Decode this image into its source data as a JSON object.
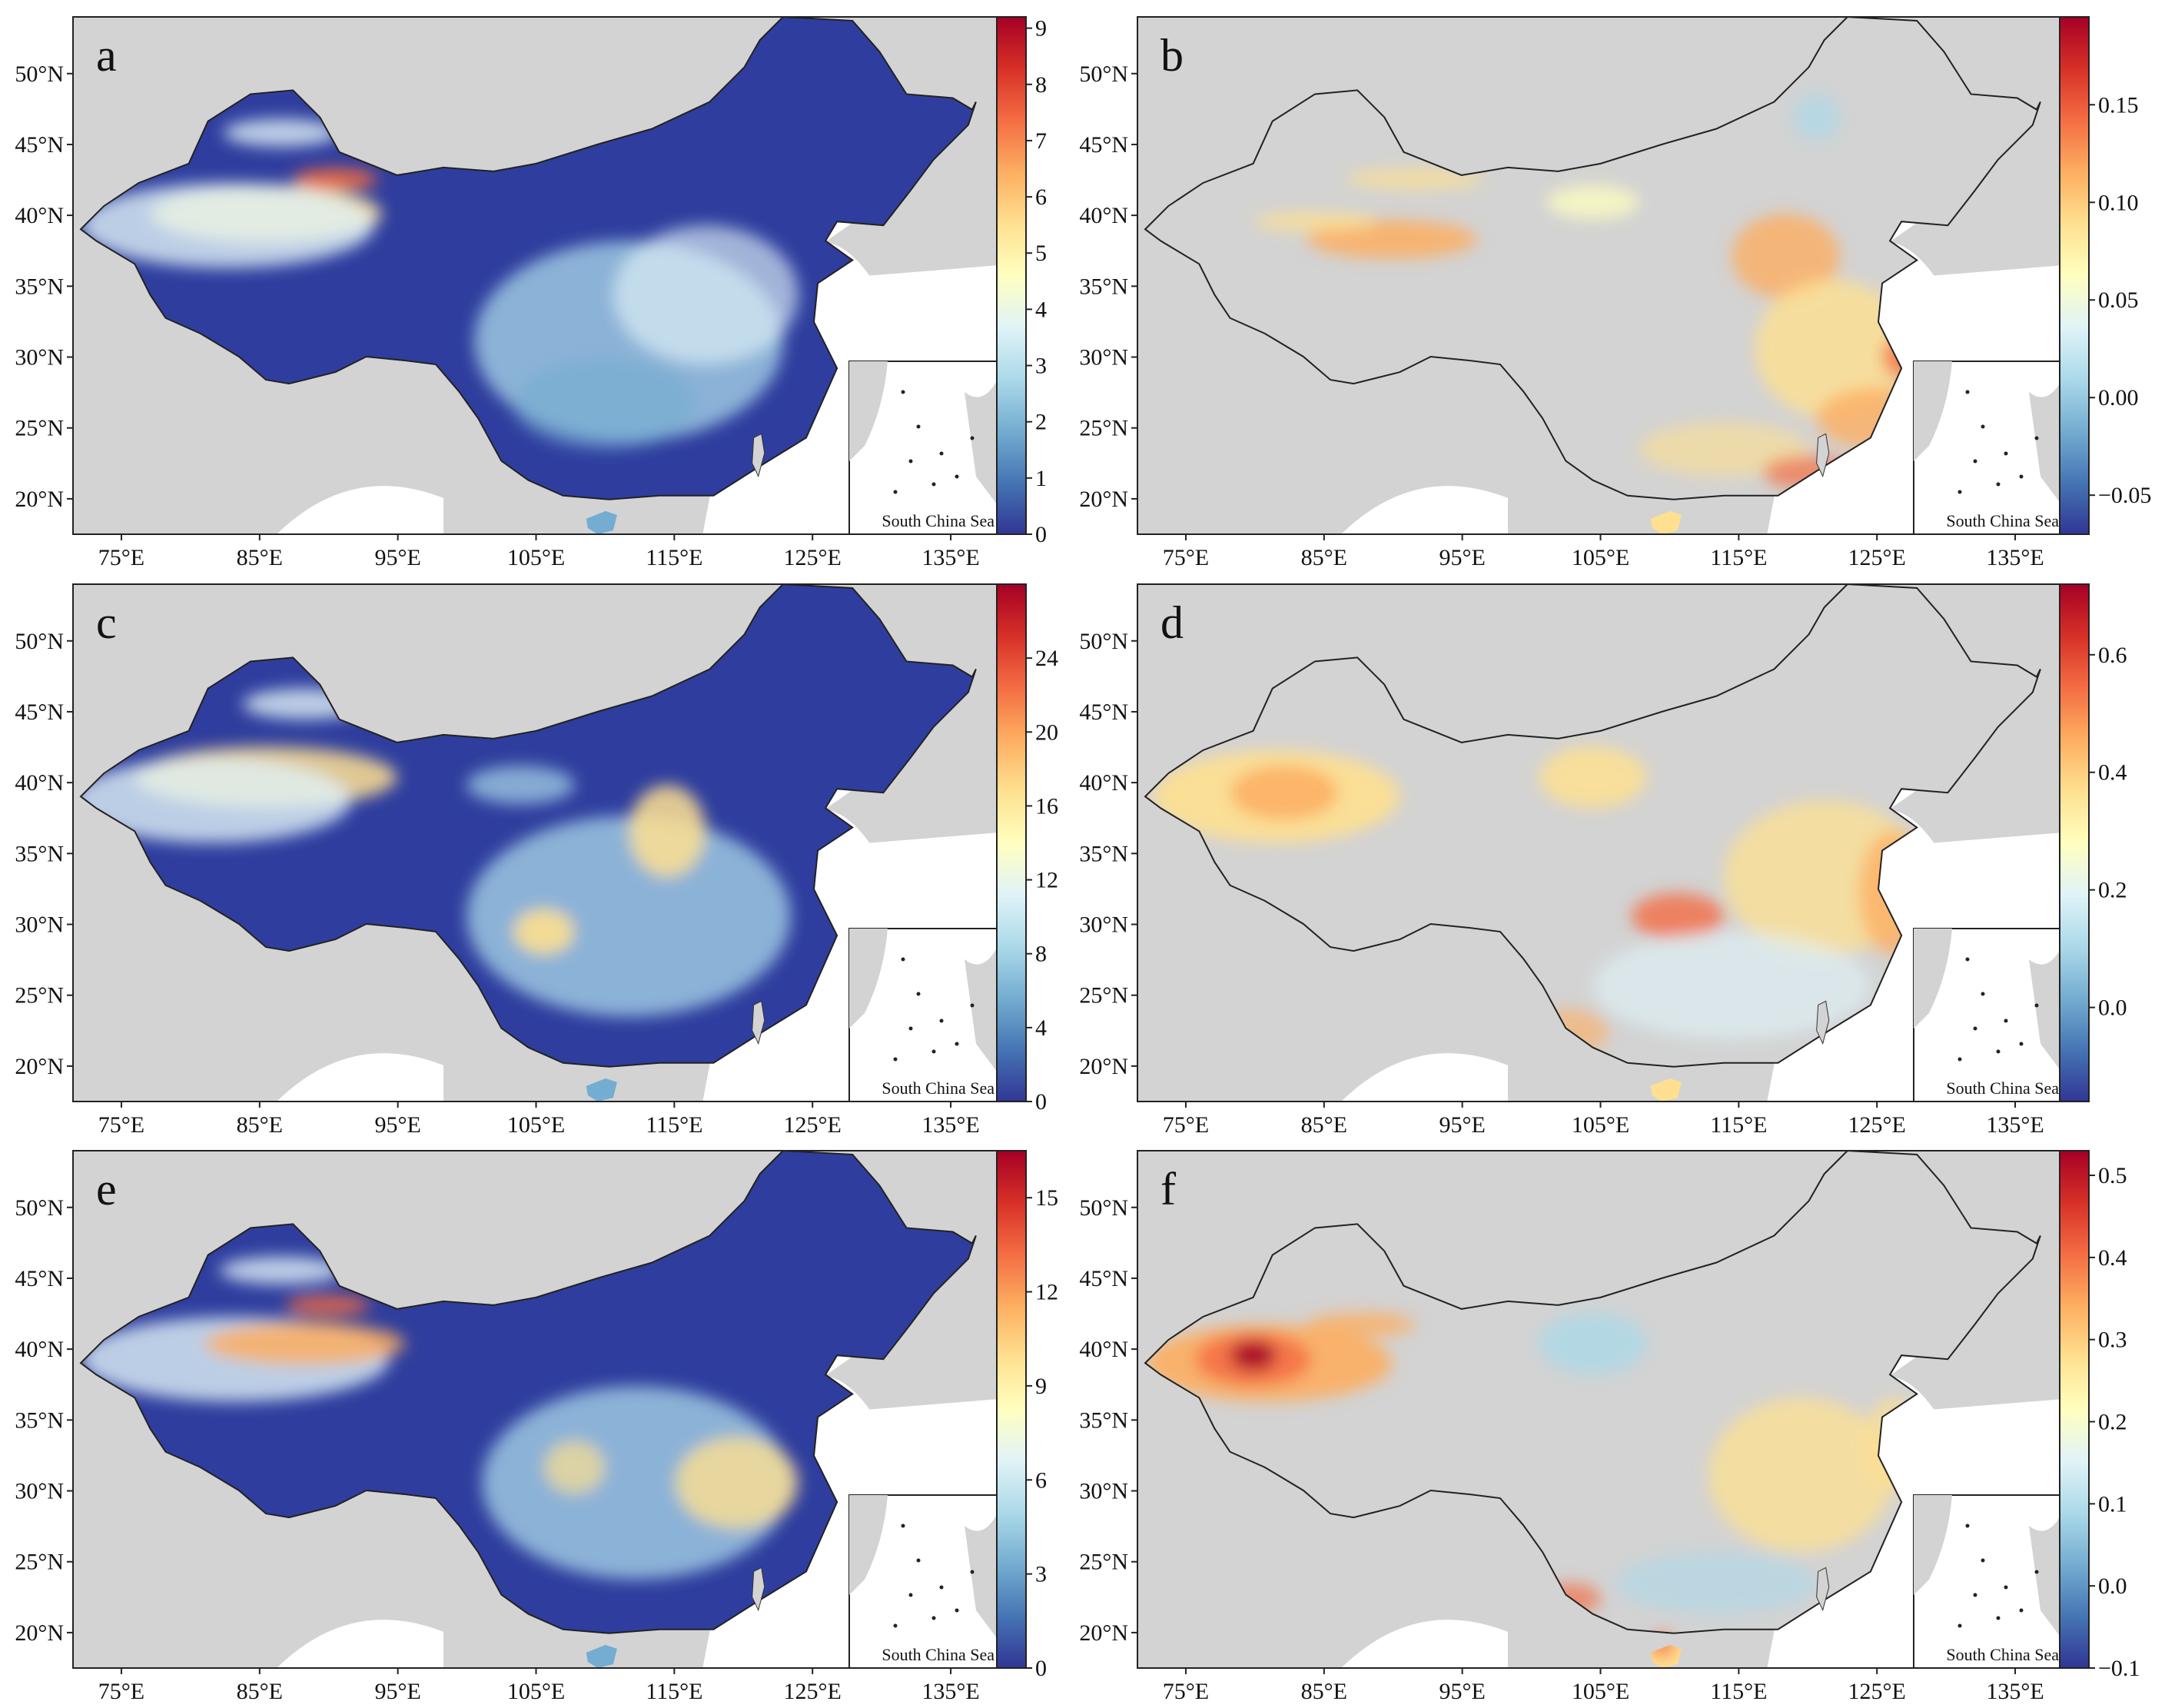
{
  "figure": {
    "lon_ticks": [
      "75°E",
      "85°E",
      "95°E",
      "105°E",
      "115°E",
      "125°E",
      "135°E"
    ],
    "lat_ticks": [
      "50°N",
      "45°N",
      "40°N",
      "35°N",
      "30°N",
      "25°N",
      "20°N"
    ],
    "inset_label": "South China Sea",
    "colormap": [
      "#313695",
      "#4575b4",
      "#74add1",
      "#abd9e9",
      "#e0f3f8",
      "#ffffbf",
      "#fee090",
      "#fdae61",
      "#f46d43",
      "#d73027",
      "#a50026"
    ],
    "land_color": "#d3d3d3",
    "low_color": "#2f3e9e",
    "panels": [
      {
        "letter": "a",
        "colorbar": {
          "min": 0,
          "max": 9.2,
          "ticks": [
            "0",
            "1",
            "2",
            "3",
            "4",
            "5",
            "6",
            "7",
            "8",
            "9"
          ],
          "tick_values": [
            0,
            1,
            2,
            3,
            4,
            5,
            6,
            7,
            8,
            9
          ]
        }
      },
      {
        "letter": "b",
        "colorbar": {
          "min": -0.07,
          "max": 0.195,
          "ticks": [
            "−0.05",
            "0.00",
            "0.05",
            "0.10",
            "0.15"
          ],
          "tick_values": [
            -0.05,
            0,
            0.05,
            0.1,
            0.15
          ]
        }
      },
      {
        "letter": "c",
        "colorbar": {
          "min": 0,
          "max": 28,
          "ticks": [
            "0",
            "4",
            "8",
            "12",
            "16",
            "20",
            "24"
          ],
          "tick_values": [
            0,
            4,
            8,
            12,
            16,
            20,
            24
          ]
        }
      },
      {
        "letter": "d",
        "colorbar": {
          "min": -0.16,
          "max": 0.72,
          "ticks": [
            "0.0",
            "0.2",
            "0.4",
            "0.6"
          ],
          "tick_values": [
            0,
            0.2,
            0.4,
            0.6
          ]
        }
      },
      {
        "letter": "e",
        "colorbar": {
          "min": 0,
          "max": 16.5,
          "ticks": [
            "0",
            "3",
            "6",
            "9",
            "12",
            "15"
          ],
          "tick_values": [
            0,
            3,
            6,
            9,
            12,
            15
          ]
        }
      },
      {
        "letter": "f",
        "colorbar": {
          "min": -0.1,
          "max": 0.53,
          "ticks": [
            "−0.1",
            "0.0",
            "0.1",
            "0.2",
            "0.3",
            "0.4",
            "0.5"
          ],
          "tick_values": [
            -0.1,
            0,
            0.1,
            0.2,
            0.3,
            0.4,
            0.5
          ]
        }
      }
    ]
  }
}
